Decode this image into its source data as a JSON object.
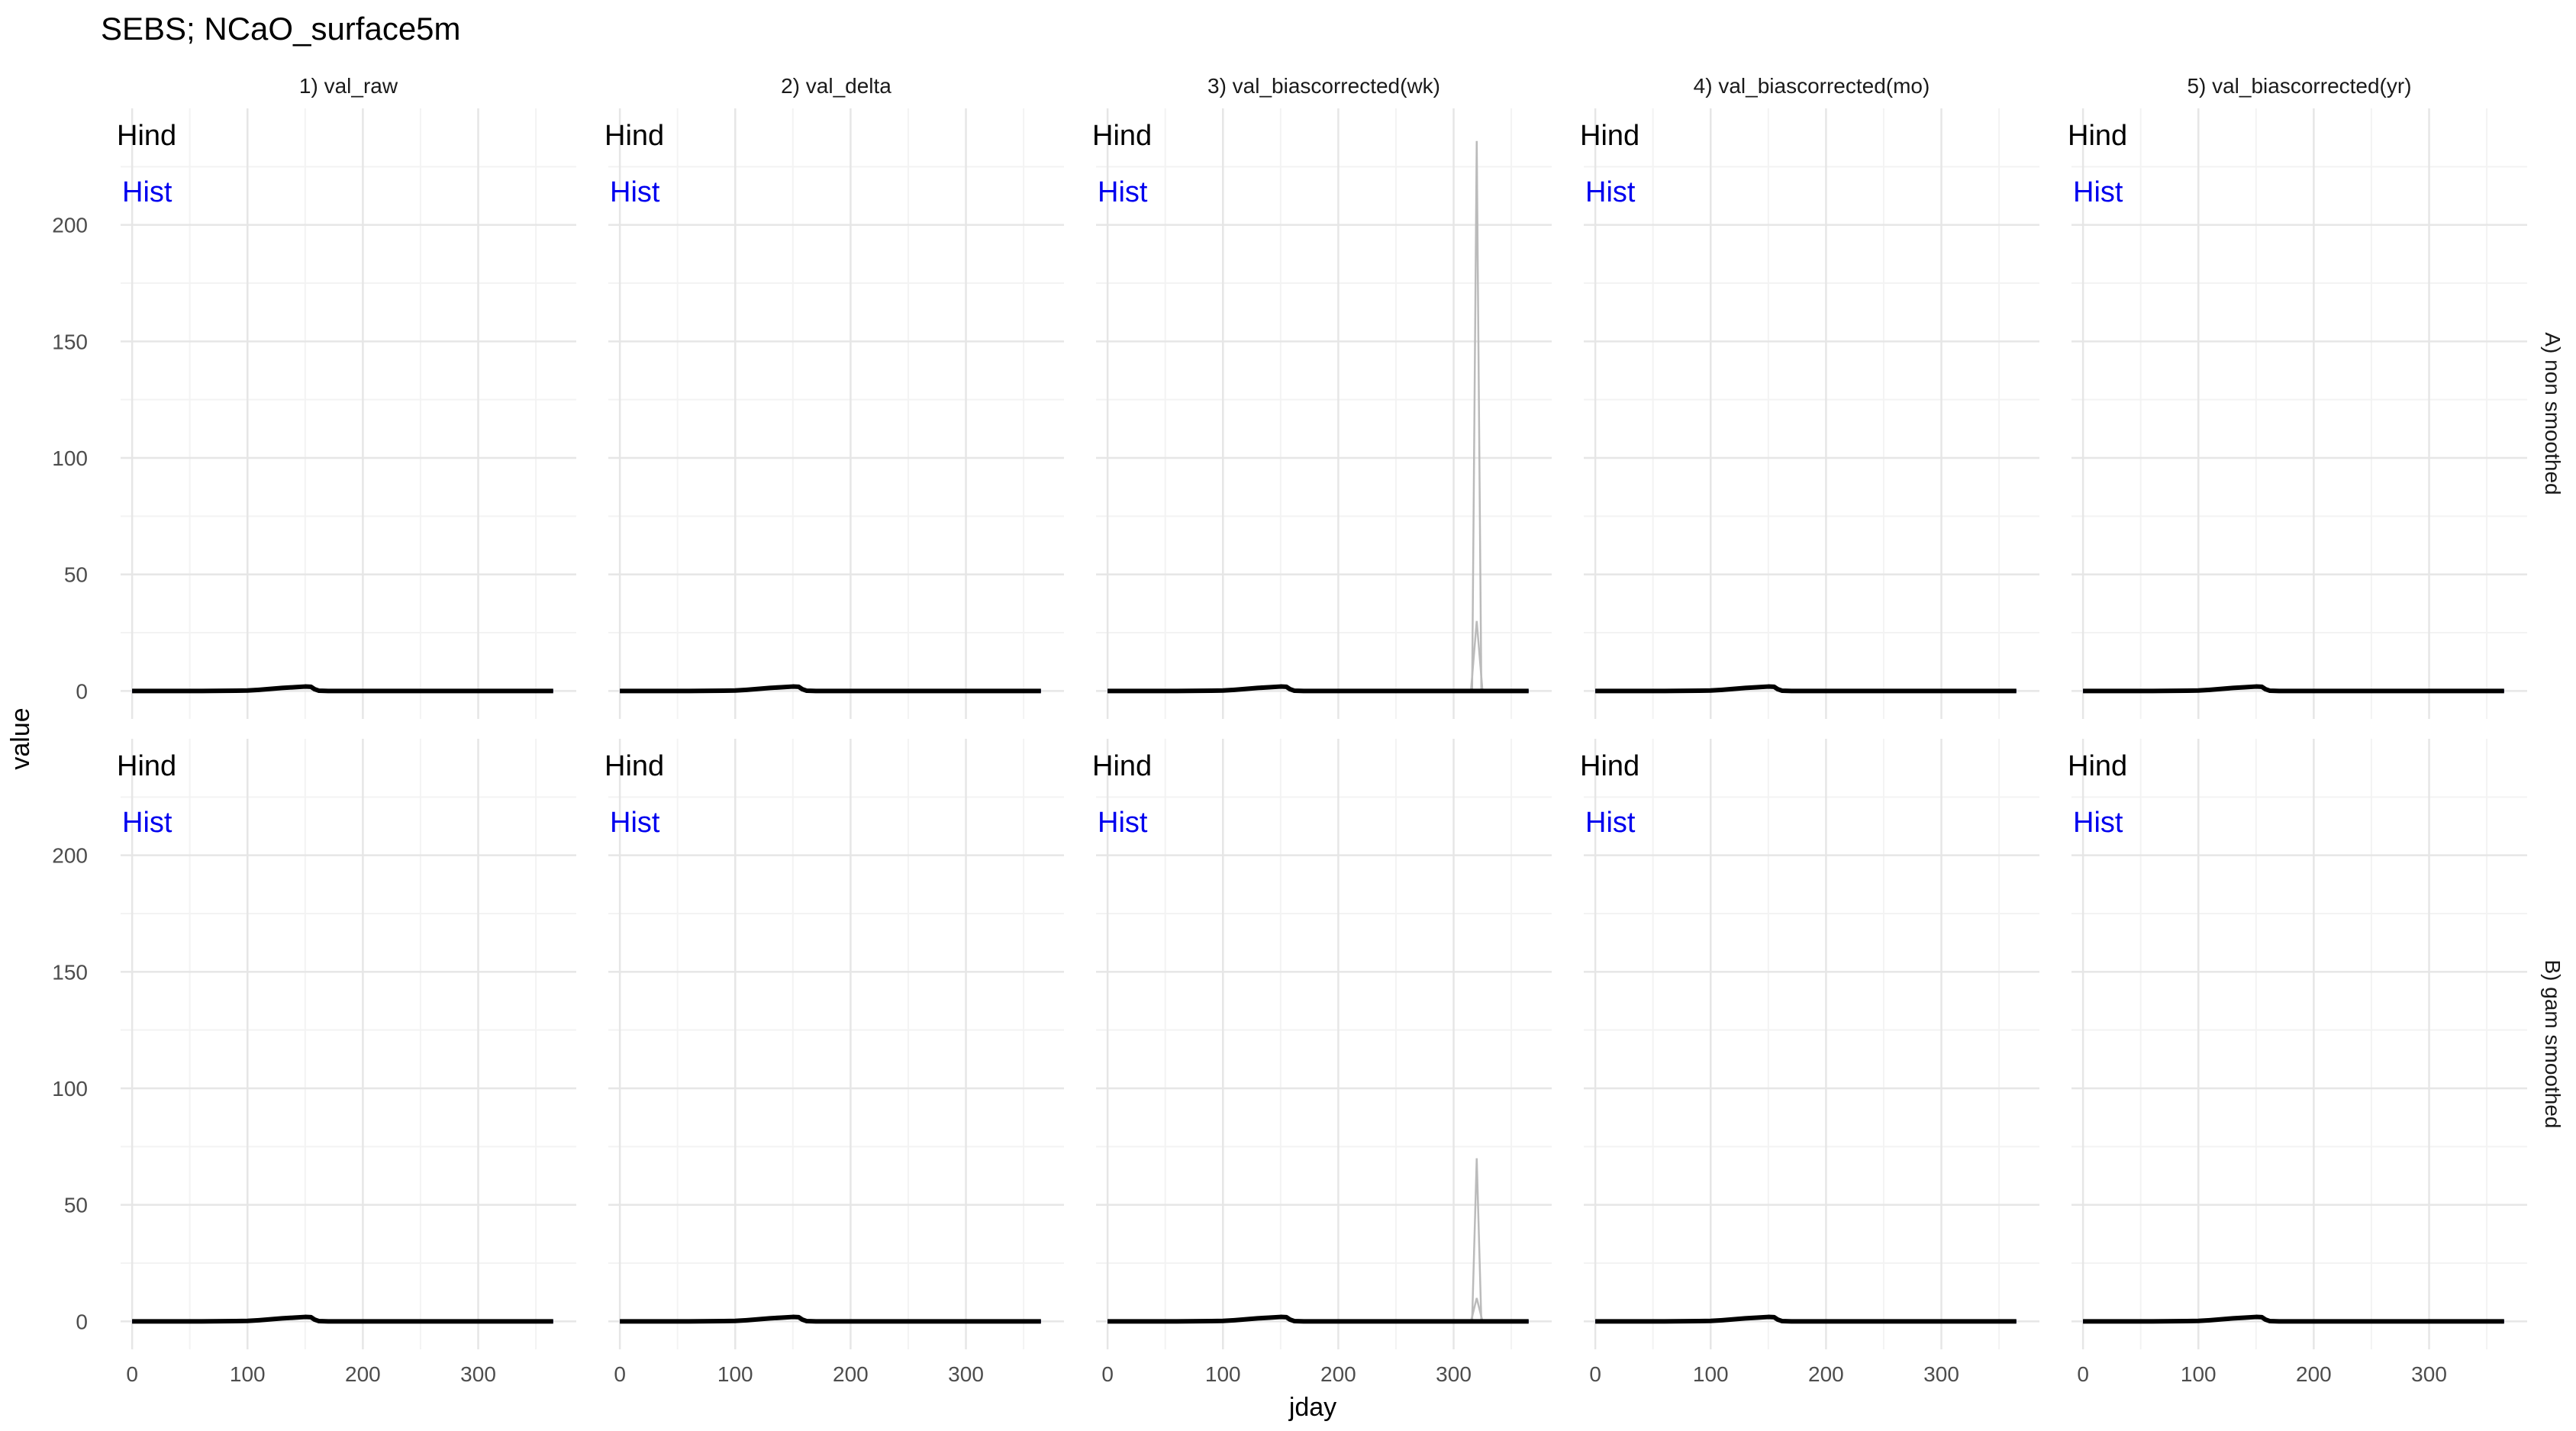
{
  "chart_data": {
    "type": "line",
    "title": "SEBS; NCaO_surface5m",
    "xlabel": "jday",
    "ylabel": "value",
    "columns": [
      "1) val_raw",
      "2) val_delta",
      "3) val_biascorrected(wk)",
      "4) val_biascorrected(mo)",
      "5) val_biascorrected(yr)"
    ],
    "rows": [
      "A) non smoothed",
      "B) gam smoothed"
    ],
    "xlim": [
      -10,
      385
    ],
    "ylim": [
      -12,
      250
    ],
    "xticks": [
      0,
      100,
      200,
      300
    ],
    "yticks": [
      0,
      50,
      100,
      150,
      200
    ],
    "grid": true,
    "annotations": [
      {
        "text": "Hind",
        "color": "#000000"
      },
      {
        "text": "Hist",
        "color": "#0000ee"
      }
    ],
    "series": [
      {
        "name": "Hind",
        "color": "#000000",
        "x": [
          0,
          60,
          90,
          100,
          110,
          120,
          130,
          140,
          150,
          155,
          158,
          162,
          170,
          200,
          300,
          365
        ],
        "values": [
          0,
          0,
          0.1,
          0.2,
          0.5,
          0.9,
          1.3,
          1.6,
          1.9,
          1.8,
          0.8,
          0.1,
          0,
          0,
          0,
          0
        ]
      },
      {
        "name": "Hist",
        "color": "#0000cc",
        "x": [
          0,
          60,
          90,
          100,
          110,
          120,
          130,
          140,
          150,
          155,
          158,
          162,
          170,
          200,
          300,
          365
        ],
        "values": [
          0,
          0,
          0.1,
          0.2,
          0.4,
          0.8,
          1.1,
          1.4,
          1.7,
          1.6,
          0.7,
          0.1,
          0,
          0,
          0,
          0
        ]
      }
    ],
    "spikes": [
      {
        "row": 0,
        "col": 2,
        "color": "#bbbbbb",
        "lines": [
          {
            "x": [
              310,
              316,
              320,
              324,
              330
            ],
            "values": [
              0,
              0,
              236,
              0,
              0
            ]
          },
          {
            "x": [
              310,
              315,
              320,
              325,
              330
            ],
            "values": [
              0,
              0,
              30,
              0,
              0
            ]
          }
        ]
      },
      {
        "row": 1,
        "col": 2,
        "color": "#bbbbbb",
        "lines": [
          {
            "x": [
              310,
              316,
              320,
              324,
              330
            ],
            "values": [
              0,
              0,
              70,
              0,
              0
            ]
          },
          {
            "x": [
              310,
              315,
              320,
              325,
              330
            ],
            "values": [
              0,
              0,
              10,
              0,
              0
            ]
          }
        ]
      }
    ]
  }
}
